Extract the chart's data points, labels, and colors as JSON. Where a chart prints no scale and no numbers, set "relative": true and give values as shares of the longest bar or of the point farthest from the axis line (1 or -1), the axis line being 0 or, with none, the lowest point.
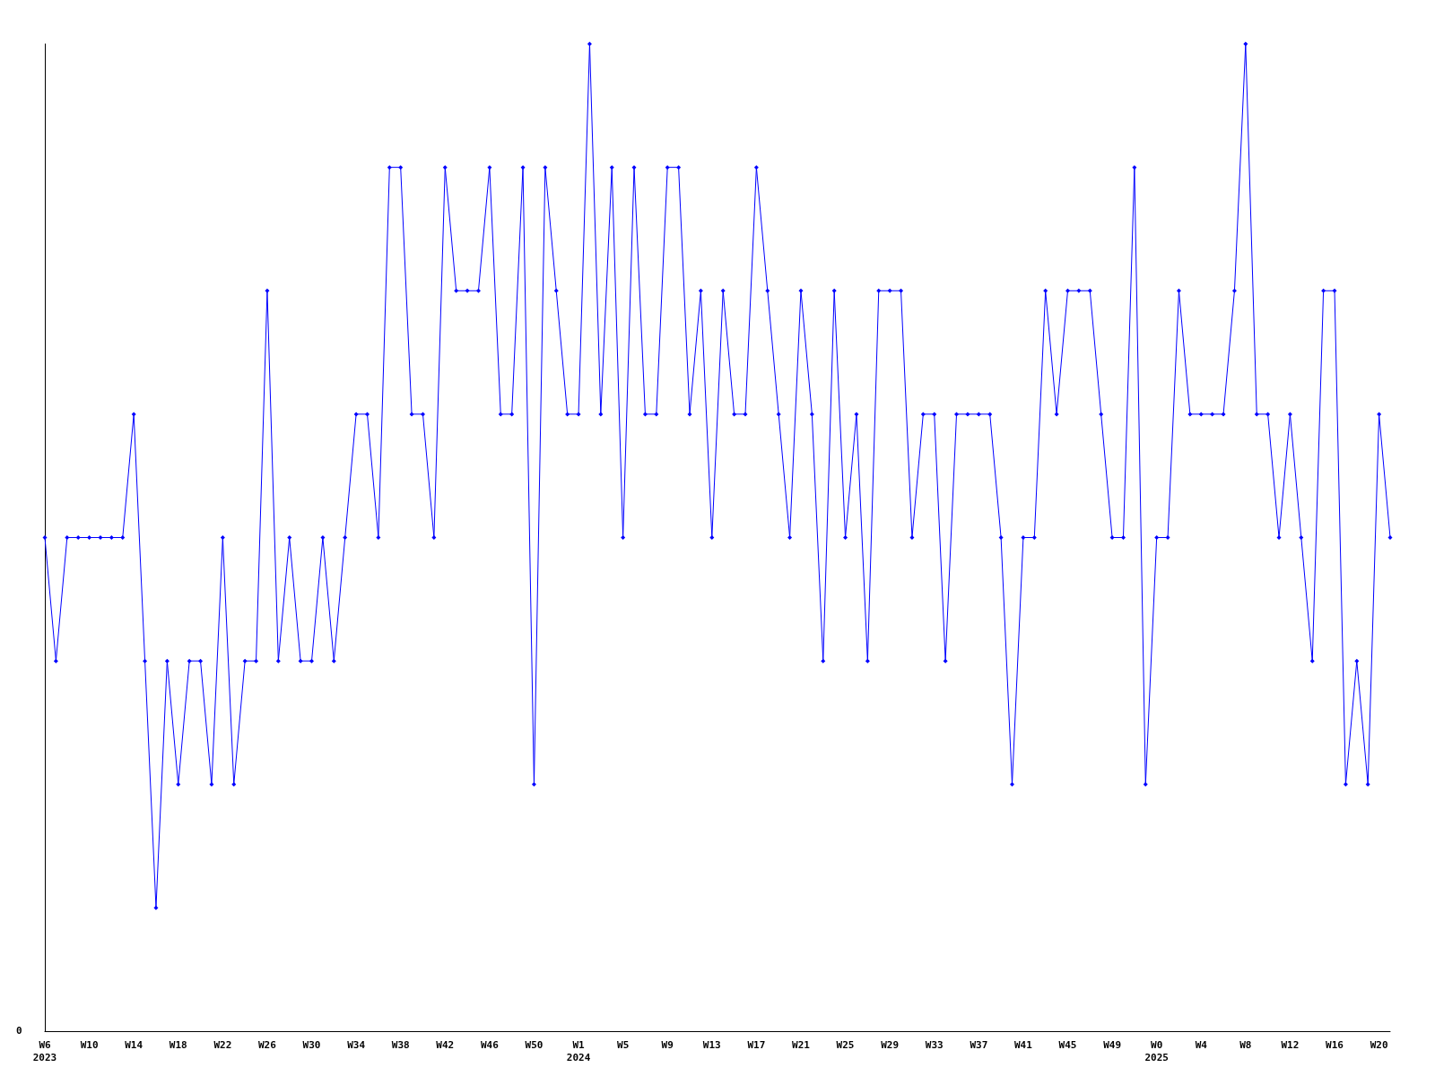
{
  "chart_data": {
    "type": "line",
    "relative": true,
    "color": "#0000ff",
    "marker": "diamond",
    "line_style": "solid",
    "grid": false,
    "annotations": [
      "0"
    ],
    "categories": [
      "W6\n2023",
      null,
      null,
      null,
      "W10",
      null,
      null,
      null,
      "W14",
      null,
      null,
      null,
      "W18",
      null,
      null,
      null,
      "W22",
      null,
      null,
      null,
      "W26",
      null,
      null,
      null,
      "W30",
      null,
      null,
      null,
      "W34",
      null,
      null,
      null,
      "W38",
      null,
      null,
      null,
      "W42",
      null,
      null,
      null,
      "W46",
      null,
      null,
      null,
      "W50",
      null,
      null,
      null,
      "W1\n2024",
      null,
      null,
      null,
      "W5",
      null,
      null,
      null,
      "W9",
      null,
      null,
      null,
      "W13",
      null,
      null,
      null,
      "W17",
      null,
      null,
      null,
      "W21",
      null,
      null,
      null,
      "W25",
      null,
      null,
      null,
      "W29",
      null,
      null,
      null,
      "W33",
      null,
      null,
      null,
      "W37",
      null,
      null,
      null,
      "W41",
      null,
      null,
      null,
      "W45",
      null,
      null,
      null,
      "W49",
      null,
      null,
      null,
      "W0\n2025",
      null,
      null,
      null,
      "W4",
      null,
      null,
      null,
      "W8",
      null,
      null,
      null,
      "W12",
      null,
      null,
      null,
      "W16",
      null,
      null,
      null,
      "W20",
      null
    ],
    "values": [
      0.5,
      0.375,
      0.5,
      0.5,
      0.5,
      0.5,
      0.5,
      0.5,
      0.625,
      0.375,
      0.125,
      0.375,
      0.25,
      0.375,
      0.375,
      0.25,
      0.5,
      0.25,
      0.375,
      0.375,
      0.75,
      0.375,
      0.5,
      0.375,
      0.375,
      0.5,
      0.375,
      0.5,
      0.625,
      0.625,
      0.5,
      0.875,
      0.875,
      0.625,
      0.625,
      0.5,
      0.875,
      0.75,
      0.75,
      0.75,
      0.875,
      0.625,
      0.625,
      0.875,
      0.25,
      0.875,
      0.75,
      0.625,
      0.625,
      1,
      0.625,
      0.875,
      0.5,
      0.875,
      0.625,
      0.625,
      0.875,
      0.875,
      0.625,
      0.75,
      0.5,
      0.75,
      0.625,
      0.625,
      0.875,
      0.75,
      0.625,
      0.5,
      0.75,
      0.625,
      0.375,
      0.75,
      0.5,
      0.625,
      0.375,
      0.75,
      0.75,
      0.75,
      0.5,
      0.625,
      0.625,
      0.375,
      0.625,
      0.625,
      0.625,
      0.625,
      0.5,
      0.25,
      0.5,
      0.5,
      0.75,
      0.625,
      0.75,
      0.75,
      0.75,
      0.625,
      0.5,
      0.5,
      0.875,
      0.25,
      0.5,
      0.5,
      0.75,
      0.625,
      0.625,
      0.625,
      0.625,
      0.75,
      1,
      0.625,
      0.625,
      0.5,
      0.625,
      0.5,
      0.375,
      0.75,
      0.75,
      0.25,
      0.375,
      0.25,
      0.625,
      0.5
    ]
  }
}
